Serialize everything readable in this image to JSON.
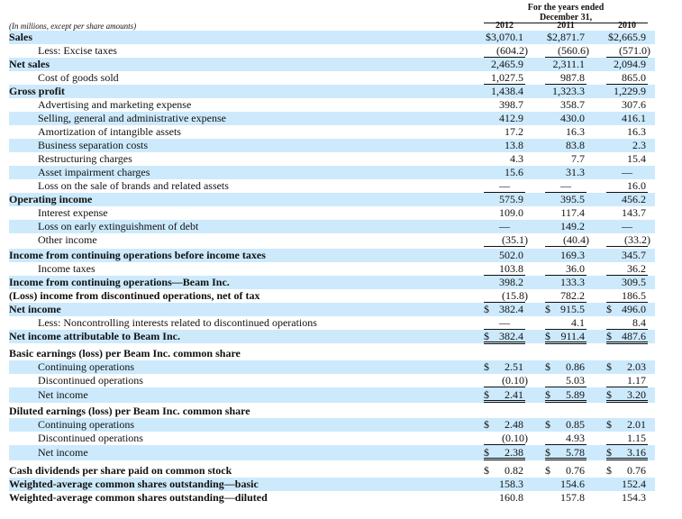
{
  "header": {
    "period_line1": "For the years ended",
    "period_line2": "December 31,",
    "units_note": "(In millions, except per share amounts)",
    "years": [
      "2012",
      "2011",
      "2010"
    ]
  },
  "rows": [
    {
      "label": "Sales",
      "style": "bold",
      "values": [
        "$3,070.1",
        "$2,871.7",
        "$2,665.9"
      ]
    },
    {
      "label": "Less: Excise taxes",
      "style": "indent",
      "values": [
        "(604.2)",
        "(560.6)",
        "(571.0)"
      ]
    },
    {
      "label": "Net sales",
      "style": "bold",
      "values": [
        "2,465.9",
        "2,311.1",
        "2,094.9"
      ]
    },
    {
      "label": "Cost of goods sold",
      "style": "indent",
      "values": [
        "1,027.5",
        "987.8",
        "865.0"
      ]
    },
    {
      "label": "Gross profit",
      "style": "bold",
      "values": [
        "1,438.4",
        "1,323.3",
        "1,229.9"
      ]
    },
    {
      "label": "Advertising and marketing expense",
      "style": "indent",
      "values": [
        "398.7",
        "358.7",
        "307.6"
      ]
    },
    {
      "label": "Selling, general and administrative expense",
      "style": "indent",
      "values": [
        "412.9",
        "430.0",
        "416.1"
      ]
    },
    {
      "label": "Amortization of intangible assets",
      "style": "indent",
      "values": [
        "17.2",
        "16.3",
        "16.3"
      ]
    },
    {
      "label": "Business separation costs",
      "style": "indent",
      "values": [
        "13.8",
        "83.8",
        "2.3"
      ]
    },
    {
      "label": "Restructuring charges",
      "style": "indent",
      "values": [
        "4.3",
        "7.7",
        "15.4"
      ]
    },
    {
      "label": "Asset impairment charges",
      "style": "indent",
      "values": [
        "15.6",
        "31.3",
        "—"
      ]
    },
    {
      "label": "Loss on the sale of brands and related assets",
      "style": "indent",
      "values": [
        "—",
        "—",
        "16.0"
      ]
    },
    {
      "label": "Operating income",
      "style": "bold",
      "values": [
        "575.9",
        "395.5",
        "456.2"
      ]
    },
    {
      "label": "Interest expense",
      "style": "indent",
      "values": [
        "109.0",
        "117.4",
        "143.7"
      ]
    },
    {
      "label": "Loss on early extinguishment of debt",
      "style": "indent",
      "values": [
        "—",
        "149.2",
        "—"
      ]
    },
    {
      "label": "Other income",
      "style": "indent",
      "values": [
        "(35.1)",
        "(40.4)",
        "(33.2)"
      ]
    },
    {
      "label": "Income from continuing operations before income taxes",
      "style": "bold",
      "values": [
        "502.0",
        "169.3",
        "345.7"
      ]
    },
    {
      "label": "Income taxes",
      "style": "indent",
      "values": [
        "103.8",
        "36.0",
        "36.2"
      ]
    },
    {
      "label": "Income from continuing operations—Beam Inc.",
      "style": "bold",
      "values": [
        "398.2",
        "133.3",
        "309.5"
      ]
    },
    {
      "label": "(Loss) income from discontinued operations, net of tax",
      "style": "bold",
      "values": [
        "(15.8)",
        "782.2",
        "186.5"
      ]
    },
    {
      "label": "Net income",
      "style": "bold",
      "values": [
        "$ 382.4",
        "$ 915.5",
        "$ 496.0"
      ]
    },
    {
      "label": "Less: Noncontrolling interests related to discontinued operations",
      "style": "indent",
      "values": [
        "—",
        "4.1",
        "8.4"
      ]
    },
    {
      "label": "Net income attributable to Beam Inc.",
      "style": "bold",
      "values": [
        "$ 382.4",
        "$ 911.4",
        "$ 487.6"
      ]
    },
    {
      "label": "Basic earnings (loss) per Beam Inc. common share",
      "style": "bold",
      "values": [
        "",
        "",
        ""
      ]
    },
    {
      "label": "Continuing operations",
      "style": "indent",
      "values": [
        "$ 2.51",
        "$ 0.86",
        "$ 2.03"
      ]
    },
    {
      "label": "Discontinued operations",
      "style": "indent",
      "values": [
        "(0.10)",
        "5.03",
        "1.17"
      ]
    },
    {
      "label": "Net income",
      "style": "indent",
      "values": [
        "$ 2.41",
        "$ 5.89",
        "$ 3.20"
      ]
    },
    {
      "label": "Diluted earnings (loss) per Beam Inc. common share",
      "style": "bold",
      "values": [
        "",
        "",
        ""
      ]
    },
    {
      "label": "Continuing operations",
      "style": "indent",
      "values": [
        "$ 2.48",
        "$ 0.85",
        "$ 2.01"
      ]
    },
    {
      "label": "Discontinued operations",
      "style": "indent",
      "values": [
        "(0.10)",
        "4.93",
        "1.15"
      ]
    },
    {
      "label": "Net income",
      "style": "indent",
      "values": [
        "$ 2.38",
        "$ 5.78",
        "$ 3.16"
      ]
    },
    {
      "label": "Cash dividends per share paid on common stock",
      "style": "bold",
      "values": [
        "$ 0.82",
        "$ 0.76",
        "$ 0.76"
      ]
    },
    {
      "label": "Weighted-average common shares outstanding—basic",
      "style": "bold",
      "values": [
        "158.3",
        "154.6",
        "152.4"
      ]
    },
    {
      "label": "Weighted-average common shares outstanding—diluted",
      "style": "bold",
      "values": [
        "160.8",
        "157.8",
        "154.3"
      ]
    }
  ]
}
